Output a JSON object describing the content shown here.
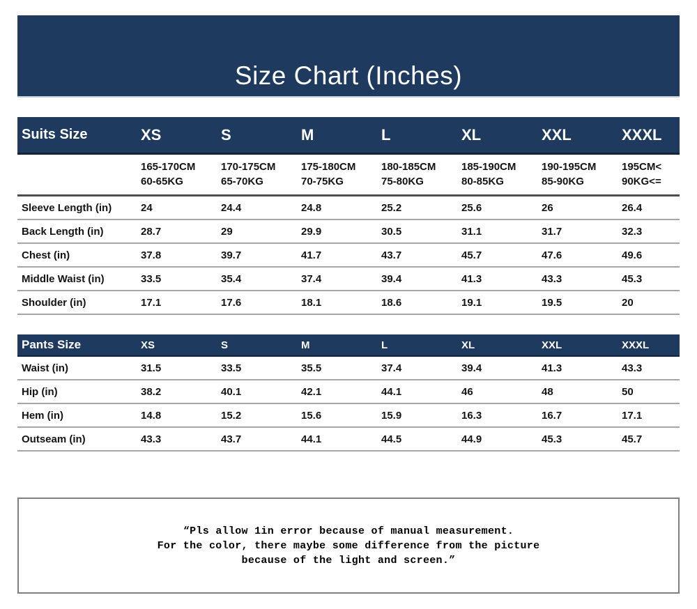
{
  "banner": {
    "title": "Size Chart (Inches)"
  },
  "suits_table": {
    "header_label": "Suits Size",
    "sizes": [
      "XS",
      "S",
      "M",
      "L",
      "XL",
      "XXL",
      "XXXL"
    ],
    "height_weight": [
      {
        "height": "165-170CM",
        "weight": "60-65KG"
      },
      {
        "height": "170-175CM",
        "weight": "65-70KG"
      },
      {
        "height": "175-180CM",
        "weight": "70-75KG"
      },
      {
        "height": "180-185CM",
        "weight": "75-80KG"
      },
      {
        "height": "185-190CM",
        "weight": "80-85KG"
      },
      {
        "height": "190-195CM",
        "weight": "85-90KG"
      },
      {
        "height": "195CM<",
        "weight": "90KG<="
      }
    ],
    "rows": [
      {
        "label": "Sleeve Length (in)",
        "values": [
          "24",
          "24.4",
          "24.8",
          "25.2",
          "25.6",
          "26",
          "26.4"
        ]
      },
      {
        "label": "Back Length (in)",
        "values": [
          "28.7",
          "29",
          "29.9",
          "30.5",
          "31.1",
          "31.7",
          "32.3"
        ]
      },
      {
        "label": "Chest (in)",
        "values": [
          "37.8",
          "39.7",
          "41.7",
          "43.7",
          "45.7",
          "47.6",
          "49.6"
        ]
      },
      {
        "label": "Middle Waist (in)",
        "values": [
          "33.5",
          "35.4",
          "37.4",
          "39.4",
          "41.3",
          "43.3",
          "45.3"
        ]
      },
      {
        "label": "Shoulder (in)",
        "values": [
          "17.1",
          "17.6",
          "18.1",
          "18.6",
          "19.1",
          "19.5",
          "20"
        ]
      }
    ]
  },
  "pants_table": {
    "header_label": "Pants Size",
    "sizes": [
      "XS",
      "S",
      "M",
      "L",
      "XL",
      "XXL",
      "XXXL"
    ],
    "rows": [
      {
        "label": "Waist (in)",
        "values": [
          "31.5",
          "33.5",
          "35.5",
          "37.4",
          "39.4",
          "41.3",
          "43.3"
        ]
      },
      {
        "label": "Hip (in)",
        "values": [
          "38.2",
          "40.1",
          "42.1",
          "44.1",
          "46",
          "48",
          "50"
        ]
      },
      {
        "label": "Hem (in)",
        "values": [
          "14.8",
          "15.2",
          "15.6",
          "15.9",
          "16.3",
          "16.7",
          "17.1"
        ]
      },
      {
        "label": "Outseam (in)",
        "values": [
          "43.3",
          "43.7",
          "44.1",
          "44.5",
          "44.9",
          "45.3",
          "45.7"
        ]
      }
    ]
  },
  "note": {
    "lines": [
      "“Pls allow 1in error because of manual measurement.",
      "For the color, there maybe some difference from the picture",
      "because of the light and screen.”"
    ]
  },
  "colors": {
    "navy": "#1e3a5e",
    "header_rule": "#12233c",
    "heavy_rule": "#4d4d4d",
    "row_separator": "#a6a6a6",
    "note_border": "#7f7f7f"
  }
}
